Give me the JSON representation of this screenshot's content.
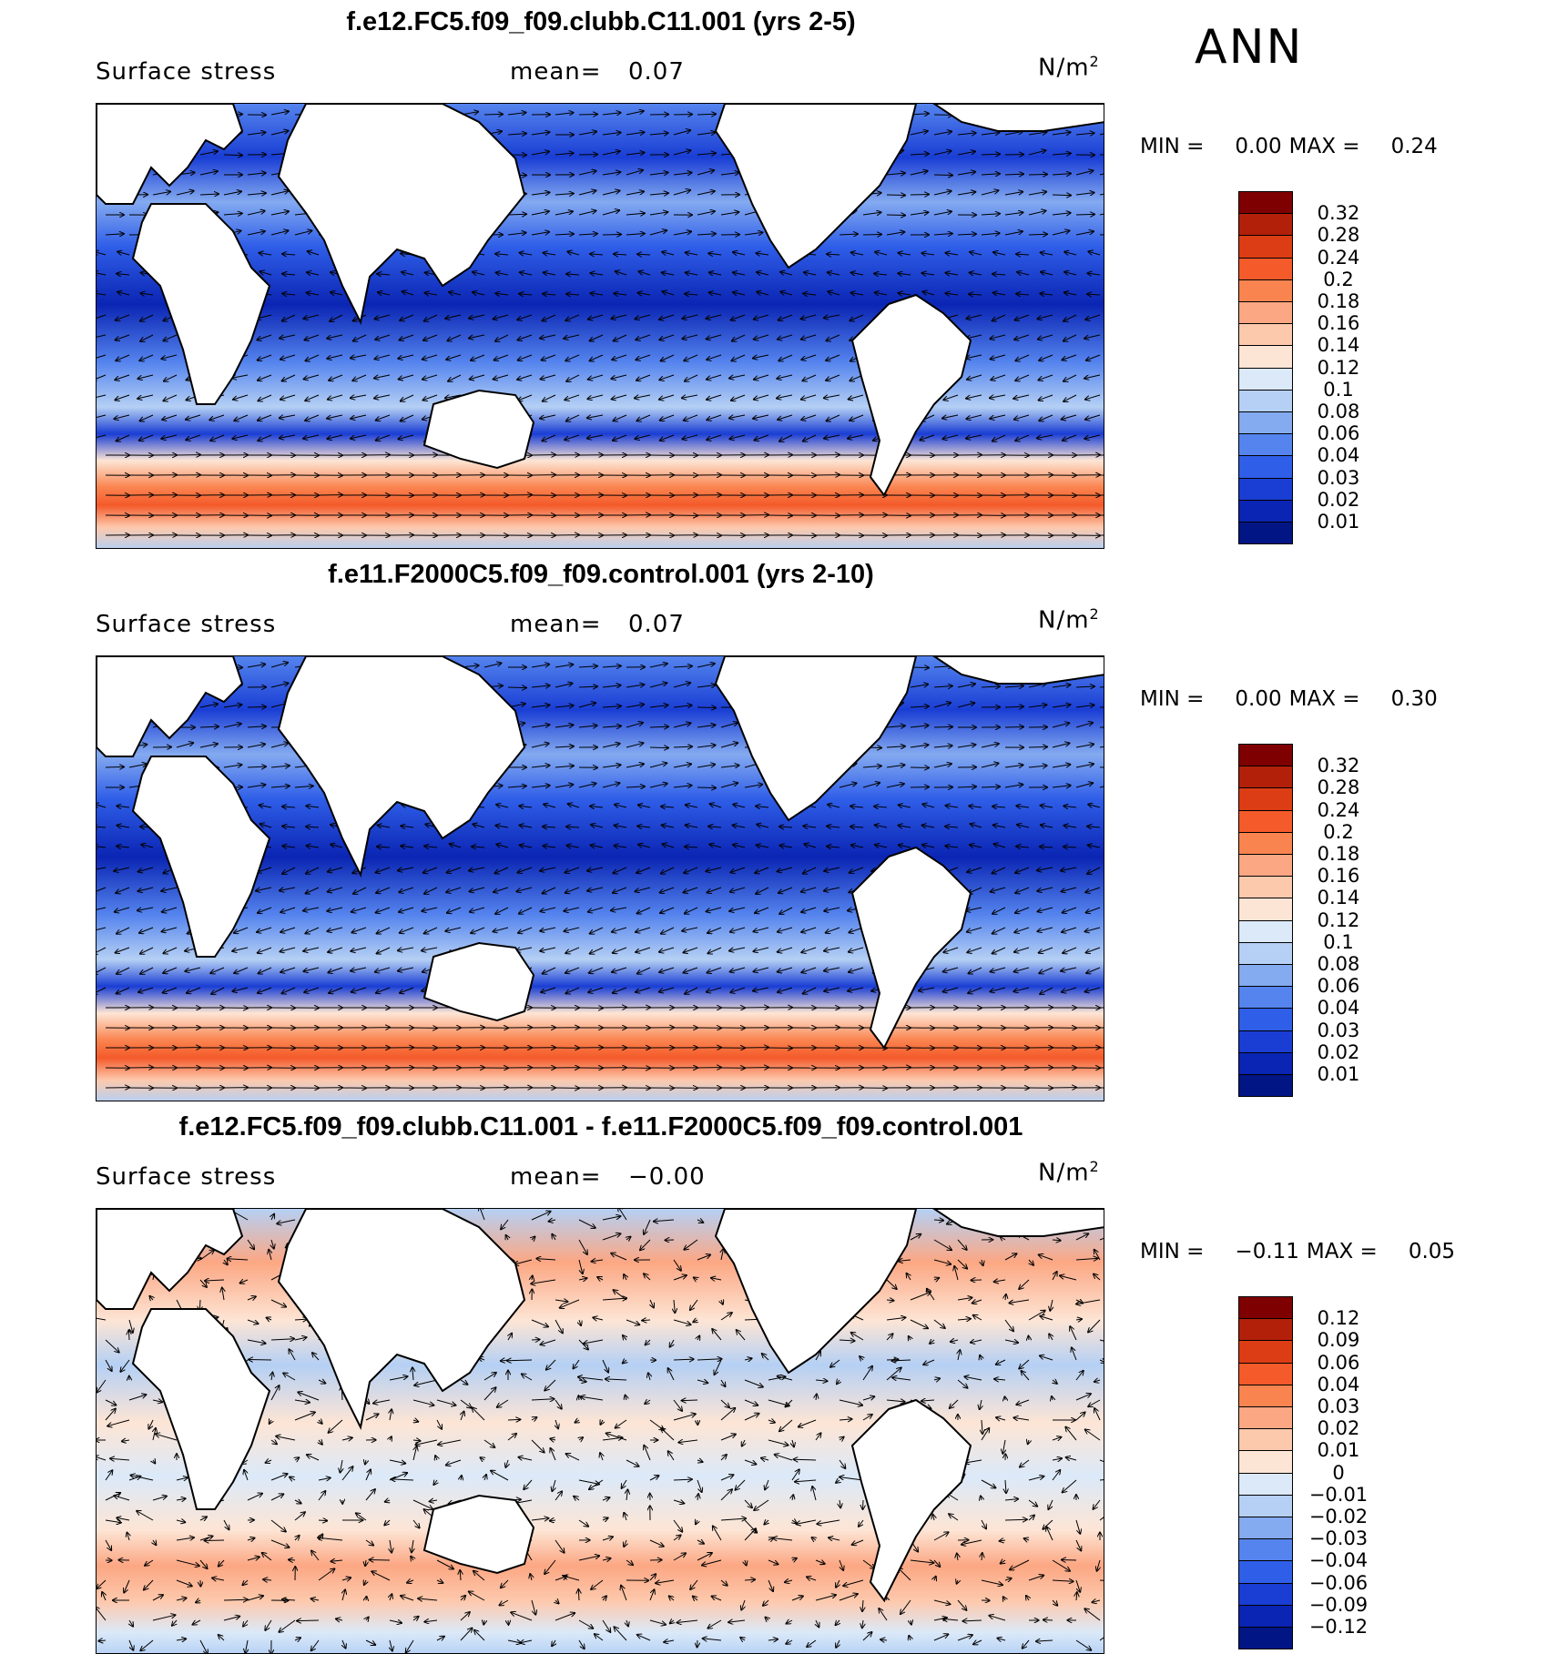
{
  "season": "ANN",
  "panels": [
    {
      "title": "f.e12.FC5.f09_f09.clubb.C11.001 (yrs 2-5)",
      "variable": "Surface stress",
      "mean_label": "mean=",
      "mean_value": "0.07",
      "units_base": "N/m",
      "units_exp": "2",
      "min_label": "MIN =",
      "min_value": "0.00",
      "max_label": "MAX =",
      "max_value": "0.24",
      "kind": "mean",
      "legend_labels": [
        "0.32",
        "0.28",
        "0.24",
        "0.2",
        "0.18",
        "0.16",
        "0.14",
        "0.12",
        "0.1",
        "0.08",
        "0.06",
        "0.04",
        "0.03",
        "0.02",
        "0.01"
      ],
      "legend_colors": [
        "#7f0000",
        "#b3200a",
        "#dc3d14",
        "#f45a2a",
        "#fa8450",
        "#fca783",
        "#fdc9ad",
        "#fde5d5",
        "#dbe9f9",
        "#b5d0f4",
        "#84aaf0",
        "#5584ee",
        "#2f5ee8",
        "#1a3ed4",
        "#0a25b3",
        "#021585"
      ]
    },
    {
      "title": "f.e11.F2000C5.f09_f09.control.001 (yrs 2-10)",
      "variable": "Surface stress",
      "mean_label": "mean=",
      "mean_value": "0.07",
      "units_base": "N/m",
      "units_exp": "2",
      "min_label": "MIN =",
      "min_value": "0.00",
      "max_label": "MAX =",
      "max_value": "0.30",
      "kind": "mean",
      "legend_labels": [
        "0.32",
        "0.28",
        "0.24",
        "0.2",
        "0.18",
        "0.16",
        "0.14",
        "0.12",
        "0.1",
        "0.08",
        "0.06",
        "0.04",
        "0.03",
        "0.02",
        "0.01"
      ],
      "legend_colors": [
        "#7f0000",
        "#b3200a",
        "#dc3d14",
        "#f45a2a",
        "#fa8450",
        "#fca783",
        "#fdc9ad",
        "#fde5d5",
        "#dbe9f9",
        "#b5d0f4",
        "#84aaf0",
        "#5584ee",
        "#2f5ee8",
        "#1a3ed4",
        "#0a25b3",
        "#021585"
      ]
    },
    {
      "title": "f.e12.FC5.f09_f09.clubb.C11.001 - f.e11.F2000C5.f09_f09.control.001",
      "variable": "Surface stress",
      "mean_label": "mean=",
      "mean_value": "−0.00",
      "units_base": "N/m",
      "units_exp": "2",
      "min_label": "MIN =",
      "min_value": "−0.11",
      "max_label": "MAX =",
      "max_value": "0.05",
      "kind": "diff",
      "legend_labels": [
        "0.12",
        "0.09",
        "0.06",
        "0.04",
        "0.03",
        "0.02",
        "0.01",
        "0",
        "−0.01",
        "−0.02",
        "−0.03",
        "−0.04",
        "−0.06",
        "−0.09",
        "−0.12"
      ],
      "legend_colors": [
        "#7f0000",
        "#b3200a",
        "#dc3d14",
        "#f45a2a",
        "#fa8450",
        "#fca783",
        "#fdc9ad",
        "#fde5d5",
        "#dbe9f9",
        "#b5d0f4",
        "#84aaf0",
        "#5584ee",
        "#2f5ee8",
        "#1a3ed4",
        "#0a25b3",
        "#021585"
      ]
    }
  ]
}
